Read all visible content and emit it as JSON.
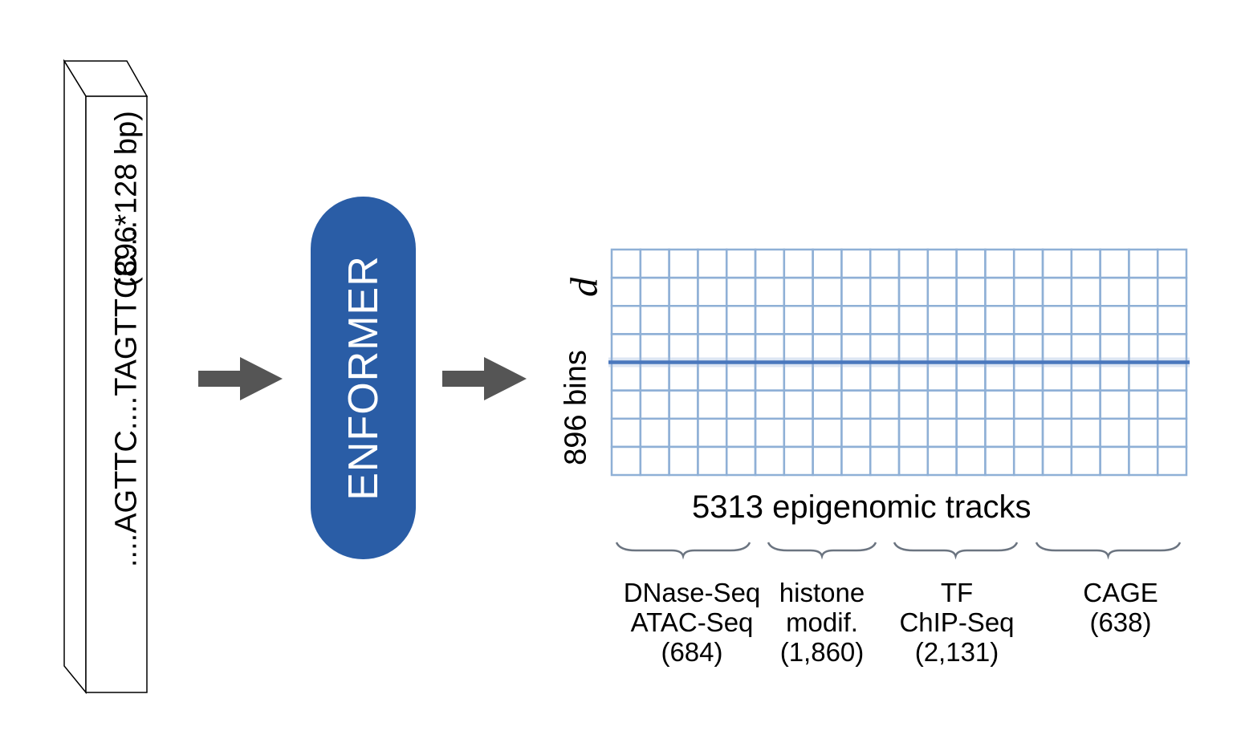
{
  "input": {
    "sequence": "....AGTTC....TAGTTCC....",
    "length_note": "(896*128 bp)"
  },
  "model": {
    "name": "ENFORMER",
    "color": "#2a5da6"
  },
  "output": {
    "rows_label": "896 bins",
    "d_label": "d",
    "columns_label": "5313 epigenomic tracks",
    "grid_color": "#8fb0d6",
    "highlight_color": "#4a78bd",
    "grid_rows": 8,
    "grid_cols": 20
  },
  "groups": [
    {
      "lines": [
        "DNase-Seq",
        "ATAC-Seq",
        "(684)"
      ]
    },
    {
      "lines": [
        "histone",
        "modif.",
        "(1,860)"
      ]
    },
    {
      "lines": [
        "TF",
        "ChIP-Seq",
        "(2,131)"
      ]
    },
    {
      "lines": [
        "CAGE",
        "(638)"
      ]
    }
  ],
  "arrow_color": "#555555"
}
